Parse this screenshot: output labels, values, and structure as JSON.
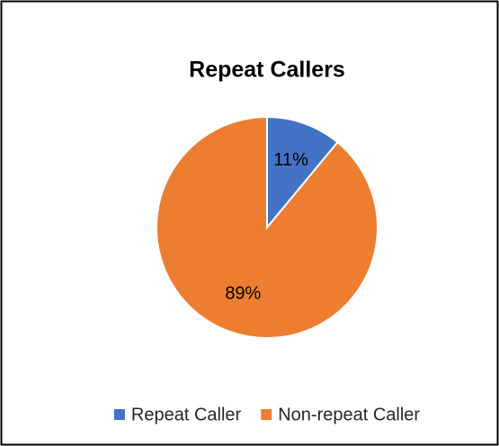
{
  "chart_data": {
    "type": "pie",
    "title": "Repeat Callers",
    "categories": [
      "Repeat Caller",
      "Non-repeat Caller"
    ],
    "values": [
      11,
      89
    ],
    "value_labels": [
      "11%",
      "89%"
    ],
    "colors": [
      "#4472c4",
      "#ed7d31"
    ],
    "legend": "bottom"
  }
}
